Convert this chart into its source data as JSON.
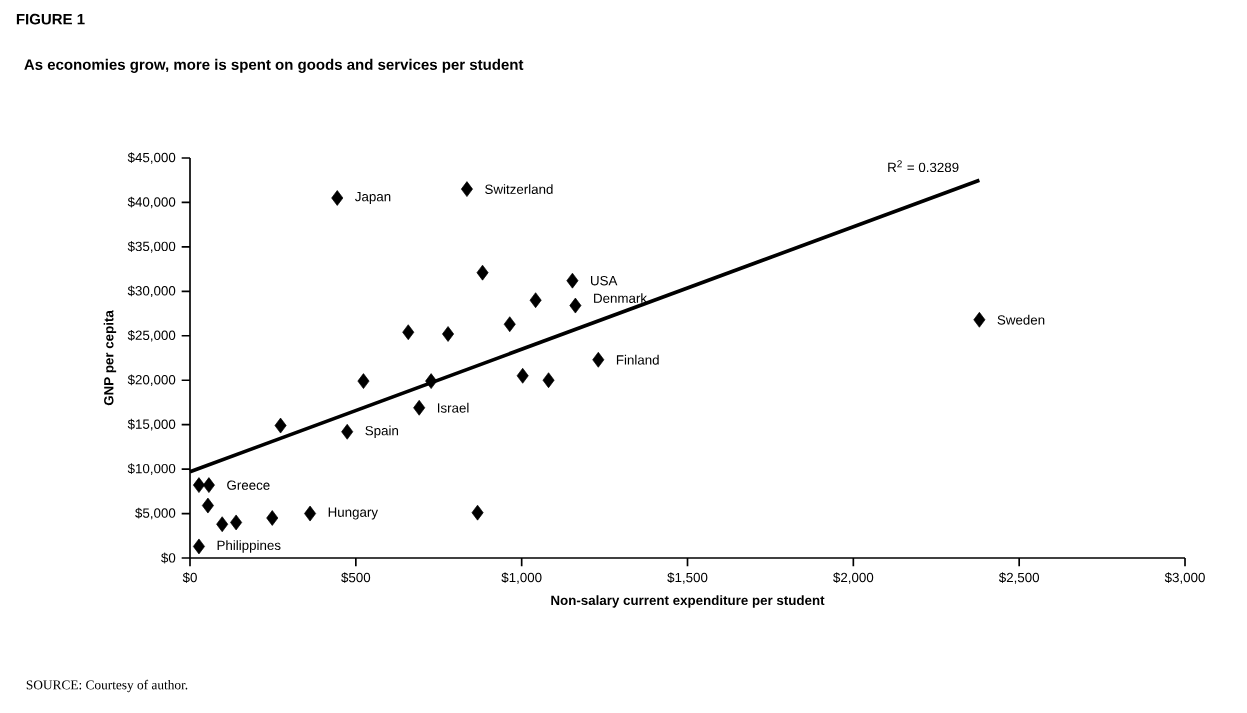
{
  "chart_data": {
    "type": "scatter",
    "title": "FIGURE 1",
    "subtitle": "As economies grow, more is spent on goods and services per student",
    "xlabel": "Non-salary current expenditure per student",
    "ylabel": "GNP per cepita",
    "annotations": [
      "R$^{2}$ = 0.3289",
      "SOURCE: Courtesy of author."
    ],
    "xlim": [
      0,
      3000
    ],
    "ylim": [
      0,
      45000
    ],
    "xticks": [
      {
        "value": 0,
        "label": "$0"
      },
      {
        "value": 500,
        "label": "$500"
      },
      {
        "value": 1000,
        "label": "$1,000"
      },
      {
        "value": 1500,
        "label": "$1,500"
      },
      {
        "value": 2000,
        "label": "$2,000"
      },
      {
        "value": 2500,
        "label": "$2,500"
      },
      {
        "value": 3000,
        "label": "$3,000"
      }
    ],
    "yticks": [
      {
        "value": 0,
        "label": "$0"
      },
      {
        "value": 5000,
        "label": "$5,000"
      },
      {
        "value": 10000,
        "label": "$10,000"
      },
      {
        "value": 15000,
        "label": "$15,000"
      },
      {
        "value": 20000,
        "label": "$20,000"
      },
      {
        "value": 25000,
        "label": "$25,000"
      },
      {
        "value": 30000,
        "label": "$30,000"
      },
      {
        "value": 35000,
        "label": "$35,000"
      },
      {
        "value": 40000,
        "label": "$40,000"
      },
      {
        "value": 45000,
        "label": "$45,000"
      }
    ],
    "marker": "diamond",
    "series": [
      {
        "color": "#000000",
        "x": [
          444,
          835,
          882,
          1153,
          1042,
          1162,
          964,
          658,
          778,
          1231,
          1003,
          1081,
          523,
          727,
          691,
          273,
          474,
          27,
          57,
          54,
          97,
          139,
          248,
          362,
          867,
          27,
          2380
        ],
        "values": [
          40500,
          41500,
          32100,
          31200,
          29000,
          28400,
          26300,
          25400,
          25200,
          22300,
          20500,
          20000,
          19900,
          19900,
          16900,
          14900,
          14200,
          8200,
          8200,
          5900,
          3800,
          4000,
          4500,
          5000,
          5100,
          1300,
          26800
        ],
        "value_labels": [
          "Japan",
          "Switzerland",
          null,
          "USA",
          null,
          "Denmark",
          null,
          null,
          null,
          "Finland",
          null,
          null,
          null,
          null,
          "Israel",
          null,
          "Spain",
          null,
          "Greece",
          null,
          null,
          null,
          null,
          "Hungary",
          null,
          "Philippines",
          "Sweden"
        ]
      },
      {
        "type": "line",
        "color": "#000000",
        "marker": "none",
        "x": [
          0,
          2380
        ],
        "values": [
          9700,
          42500
        ]
      }
    ]
  }
}
